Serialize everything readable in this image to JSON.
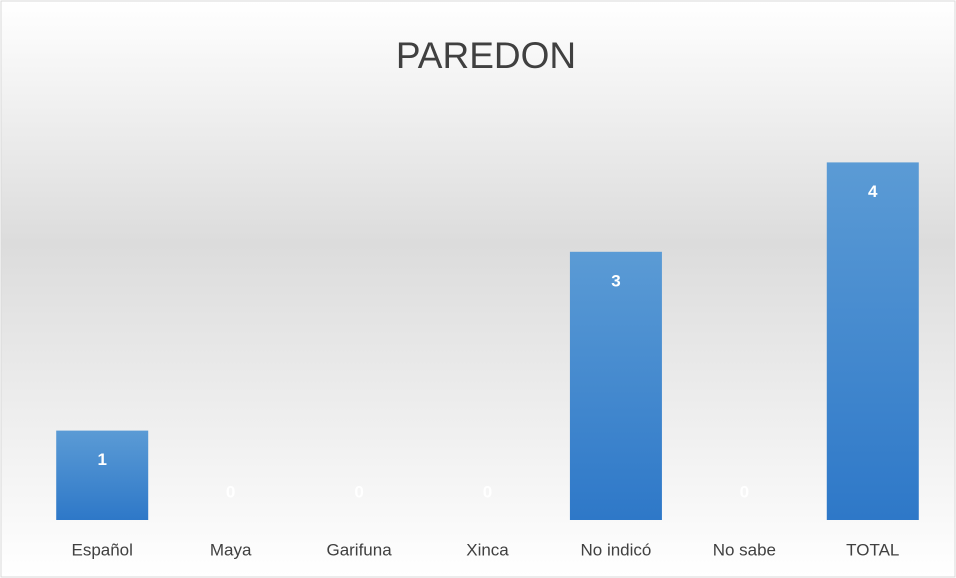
{
  "chart_data": {
    "type": "bar",
    "title": "PAREDON",
    "categories": [
      "Español",
      "Maya",
      "Garifuna",
      "Xinca",
      "No indicó",
      "No sabe",
      "TOTAL"
    ],
    "values": [
      1,
      0,
      0,
      0,
      3,
      0,
      4
    ],
    "color": "#4a8fd6",
    "ylim": [
      0,
      5
    ],
    "grid": false
  }
}
